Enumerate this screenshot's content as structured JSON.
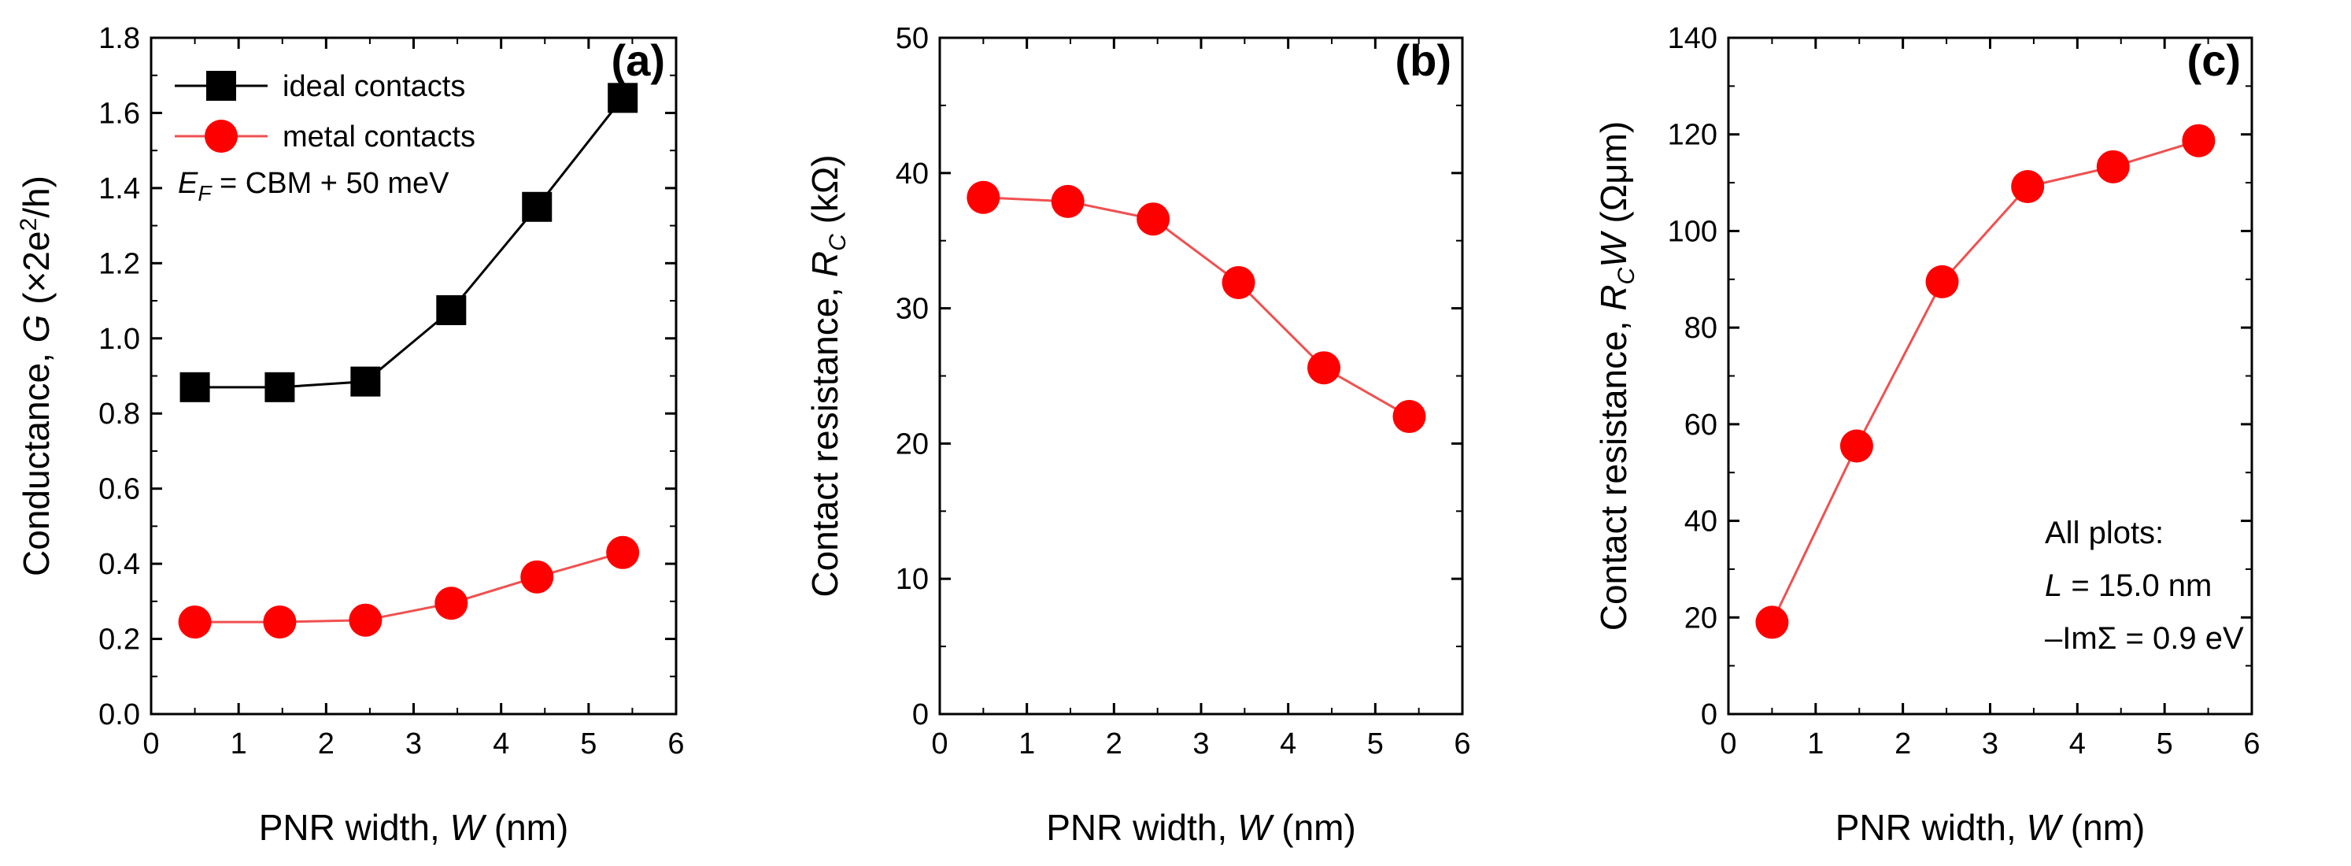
{
  "colors": {
    "ideal": "#000000",
    "metal": "#ff0000",
    "metal_line": "#f05050"
  },
  "chart_data": [
    {
      "type": "line",
      "panel": "(a)",
      "xlabel": {
        "pre": "PNR width, ",
        "var": "W",
        "post": "  (nm)"
      },
      "ylabel": {
        "pre": "Conductance, ",
        "var": "G",
        "post": "  (×2e",
        "sup": "2",
        "post2": "/h)"
      },
      "xlim": [
        0,
        6
      ],
      "ylim": [
        0.0,
        1.8
      ],
      "xticks": [
        "0",
        "1",
        "2",
        "3",
        "4",
        "5",
        "6"
      ],
      "yticks": [
        "0.0",
        "0.2",
        "0.4",
        "0.6",
        "0.8",
        "1.0",
        "1.2",
        "1.4",
        "1.6",
        "1.8"
      ],
      "x": [
        0.5,
        1.47,
        2.45,
        3.43,
        4.41,
        5.39
      ],
      "series": [
        {
          "name": "ideal contacts",
          "marker": "square",
          "color": "#000000",
          "values": [
            0.87,
            0.87,
            0.885,
            1.075,
            1.35,
            1.64
          ]
        },
        {
          "name": "metal contacts",
          "marker": "circle",
          "color": "#ff0000",
          "values": [
            0.245,
            0.245,
            0.25,
            0.295,
            0.365,
            0.43
          ]
        }
      ],
      "legend": "top-left",
      "annotation": {
        "var": "E",
        "sub": "F",
        "text": " = CBM + 50 meV"
      }
    },
    {
      "type": "line",
      "panel": "(b)",
      "xlabel": {
        "pre": "PNR width, ",
        "var": "W",
        "post": "  (nm)"
      },
      "ylabel": {
        "pre": "Contact resistance, ",
        "var": "R",
        "sub": "C",
        "post": "  (kΩ)"
      },
      "xlim": [
        0,
        6
      ],
      "ylim": [
        0,
        50
      ],
      "xticks": [
        "0",
        "1",
        "2",
        "3",
        "4",
        "5",
        "6"
      ],
      "yticks": [
        "0",
        "10",
        "20",
        "30",
        "40",
        "50"
      ],
      "x": [
        0.5,
        1.47,
        2.45,
        3.43,
        4.41,
        5.39
      ],
      "series": [
        {
          "name": "metal contacts",
          "marker": "circle",
          "color": "#ff0000",
          "values": [
            38.2,
            37.9,
            36.6,
            31.9,
            25.6,
            22.0
          ]
        }
      ]
    },
    {
      "type": "line",
      "panel": "(c)",
      "xlabel": {
        "pre": "PNR width, ",
        "var": "W",
        "post": "  (nm)"
      },
      "ylabel": {
        "pre": "Contact resistance, ",
        "var": "R",
        "sub": "C",
        "var2": "W",
        "post": "  (Ωμm)"
      },
      "xlim": [
        0,
        6
      ],
      "ylim": [
        0,
        140
      ],
      "xticks": [
        "0",
        "1",
        "2",
        "3",
        "4",
        "5",
        "6"
      ],
      "yticks": [
        "0",
        "20",
        "40",
        "60",
        "80",
        "100",
        "120",
        "140"
      ],
      "x": [
        0.5,
        1.47,
        2.45,
        3.43,
        4.41,
        5.39
      ],
      "series": [
        {
          "name": "metal contacts",
          "marker": "circle",
          "color": "#ff0000",
          "values": [
            19,
            55.5,
            89.5,
            109.2,
            113.3,
            118.7
          ]
        }
      ],
      "note": {
        "line1": "All plots:",
        "line2": {
          "var": "L",
          "text": " = 15.0 nm"
        },
        "line3": "–ImΣ = 0.9 eV"
      }
    }
  ]
}
